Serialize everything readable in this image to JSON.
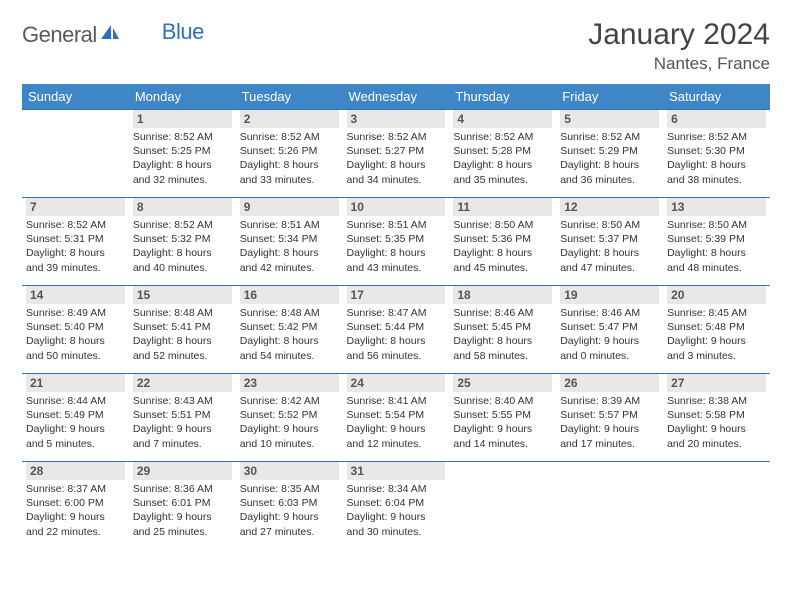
{
  "logo": {
    "text1": "General",
    "text2": "Blue"
  },
  "title": "January 2024",
  "location": "Nantes, France",
  "colors": {
    "header_bg": "#3e86c6",
    "header_text": "#ffffff",
    "row_border": "#2f71b8",
    "daynum_bg": "#e8e8e8",
    "body_text": "#333333",
    "title_text": "#444444",
    "logo_gray": "#5a5a5a",
    "logo_blue": "#2f71b8"
  },
  "fonts": {
    "title_size": 30,
    "location_size": 17,
    "dow_size": 13,
    "daynum_size": 12,
    "info_size": 10.5
  },
  "days_of_week": [
    "Sunday",
    "Monday",
    "Tuesday",
    "Wednesday",
    "Thursday",
    "Friday",
    "Saturday"
  ],
  "start_offset": 1,
  "days": [
    {
      "n": 1,
      "sunrise": "8:52 AM",
      "sunset": "5:25 PM",
      "daylight": "8 hours and 32 minutes."
    },
    {
      "n": 2,
      "sunrise": "8:52 AM",
      "sunset": "5:26 PM",
      "daylight": "8 hours and 33 minutes."
    },
    {
      "n": 3,
      "sunrise": "8:52 AM",
      "sunset": "5:27 PM",
      "daylight": "8 hours and 34 minutes."
    },
    {
      "n": 4,
      "sunrise": "8:52 AM",
      "sunset": "5:28 PM",
      "daylight": "8 hours and 35 minutes."
    },
    {
      "n": 5,
      "sunrise": "8:52 AM",
      "sunset": "5:29 PM",
      "daylight": "8 hours and 36 minutes."
    },
    {
      "n": 6,
      "sunrise": "8:52 AM",
      "sunset": "5:30 PM",
      "daylight": "8 hours and 38 minutes."
    },
    {
      "n": 7,
      "sunrise": "8:52 AM",
      "sunset": "5:31 PM",
      "daylight": "8 hours and 39 minutes."
    },
    {
      "n": 8,
      "sunrise": "8:52 AM",
      "sunset": "5:32 PM",
      "daylight": "8 hours and 40 minutes."
    },
    {
      "n": 9,
      "sunrise": "8:51 AM",
      "sunset": "5:34 PM",
      "daylight": "8 hours and 42 minutes."
    },
    {
      "n": 10,
      "sunrise": "8:51 AM",
      "sunset": "5:35 PM",
      "daylight": "8 hours and 43 minutes."
    },
    {
      "n": 11,
      "sunrise": "8:50 AM",
      "sunset": "5:36 PM",
      "daylight": "8 hours and 45 minutes."
    },
    {
      "n": 12,
      "sunrise": "8:50 AM",
      "sunset": "5:37 PM",
      "daylight": "8 hours and 47 minutes."
    },
    {
      "n": 13,
      "sunrise": "8:50 AM",
      "sunset": "5:39 PM",
      "daylight": "8 hours and 48 minutes."
    },
    {
      "n": 14,
      "sunrise": "8:49 AM",
      "sunset": "5:40 PM",
      "daylight": "8 hours and 50 minutes."
    },
    {
      "n": 15,
      "sunrise": "8:48 AM",
      "sunset": "5:41 PM",
      "daylight": "8 hours and 52 minutes."
    },
    {
      "n": 16,
      "sunrise": "8:48 AM",
      "sunset": "5:42 PM",
      "daylight": "8 hours and 54 minutes."
    },
    {
      "n": 17,
      "sunrise": "8:47 AM",
      "sunset": "5:44 PM",
      "daylight": "8 hours and 56 minutes."
    },
    {
      "n": 18,
      "sunrise": "8:46 AM",
      "sunset": "5:45 PM",
      "daylight": "8 hours and 58 minutes."
    },
    {
      "n": 19,
      "sunrise": "8:46 AM",
      "sunset": "5:47 PM",
      "daylight": "9 hours and 0 minutes."
    },
    {
      "n": 20,
      "sunrise": "8:45 AM",
      "sunset": "5:48 PM",
      "daylight": "9 hours and 3 minutes."
    },
    {
      "n": 21,
      "sunrise": "8:44 AM",
      "sunset": "5:49 PM",
      "daylight": "9 hours and 5 minutes."
    },
    {
      "n": 22,
      "sunrise": "8:43 AM",
      "sunset": "5:51 PM",
      "daylight": "9 hours and 7 minutes."
    },
    {
      "n": 23,
      "sunrise": "8:42 AM",
      "sunset": "5:52 PM",
      "daylight": "9 hours and 10 minutes."
    },
    {
      "n": 24,
      "sunrise": "8:41 AM",
      "sunset": "5:54 PM",
      "daylight": "9 hours and 12 minutes."
    },
    {
      "n": 25,
      "sunrise": "8:40 AM",
      "sunset": "5:55 PM",
      "daylight": "9 hours and 14 minutes."
    },
    {
      "n": 26,
      "sunrise": "8:39 AM",
      "sunset": "5:57 PM",
      "daylight": "9 hours and 17 minutes."
    },
    {
      "n": 27,
      "sunrise": "8:38 AM",
      "sunset": "5:58 PM",
      "daylight": "9 hours and 20 minutes."
    },
    {
      "n": 28,
      "sunrise": "8:37 AM",
      "sunset": "6:00 PM",
      "daylight": "9 hours and 22 minutes."
    },
    {
      "n": 29,
      "sunrise": "8:36 AM",
      "sunset": "6:01 PM",
      "daylight": "9 hours and 25 minutes."
    },
    {
      "n": 30,
      "sunrise": "8:35 AM",
      "sunset": "6:03 PM",
      "daylight": "9 hours and 27 minutes."
    },
    {
      "n": 31,
      "sunrise": "8:34 AM",
      "sunset": "6:04 PM",
      "daylight": "9 hours and 30 minutes."
    }
  ],
  "labels": {
    "sunrise": "Sunrise:",
    "sunset": "Sunset:",
    "daylight": "Daylight:"
  }
}
